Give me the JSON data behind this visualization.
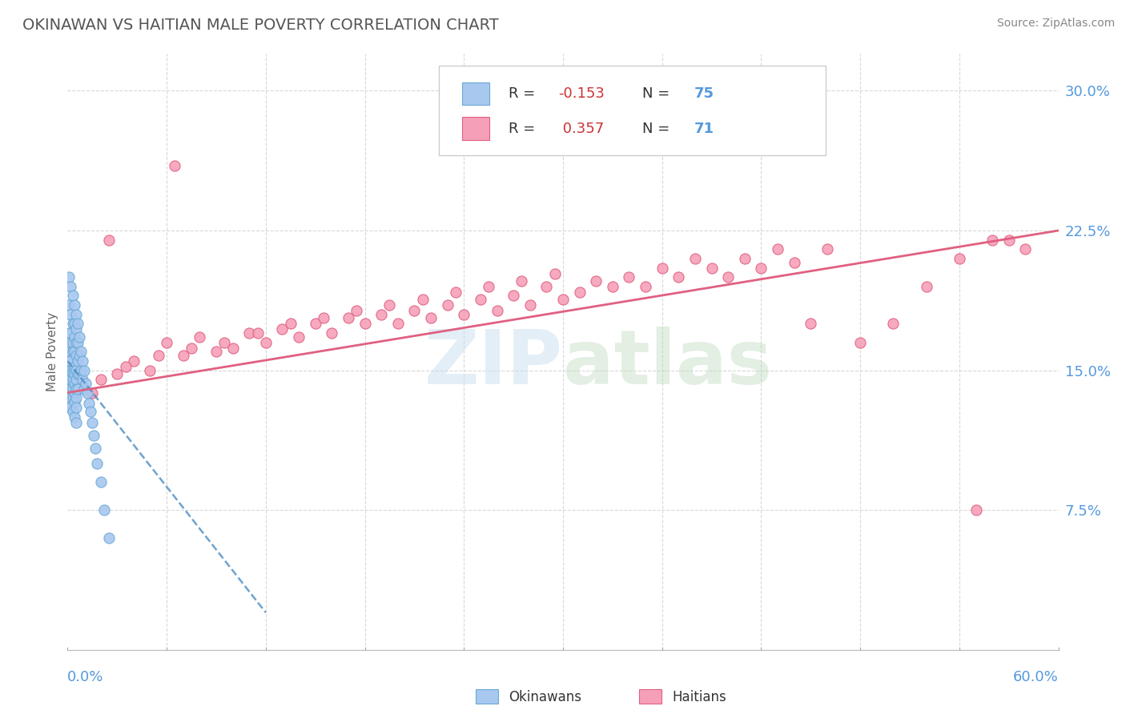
{
  "title": "OKINAWAN VS HAITIAN MALE POVERTY CORRELATION CHART",
  "source": "Source: ZipAtlas.com",
  "ylabel": "Male Poverty",
  "xmin": 0.0,
  "xmax": 0.6,
  "ymin": 0.0,
  "ymax": 0.32,
  "R_okinawan": -0.153,
  "N_okinawan": 75,
  "R_haitian": 0.357,
  "N_haitian": 71,
  "okinawan_color": "#a8c8f0",
  "haitian_color": "#f5a0b8",
  "okinawan_edge_color": "#6aaad4",
  "haitian_edge_color": "#e06080",
  "okinawan_line_color": "#4a8cc4",
  "haitian_line_color": "#e06080",
  "watermark_color": "#c8dff0",
  "background_color": "#ffffff",
  "grid_color": "#d8d8d8",
  "ytick_color": "#5599dd",
  "title_color": "#555555",
  "source_color": "#888888",
  "okinawan_scatter_x": [
    0.001,
    0.001,
    0.001,
    0.001,
    0.001,
    0.001,
    0.001,
    0.001,
    0.001,
    0.001,
    0.002,
    0.002,
    0.002,
    0.002,
    0.002,
    0.002,
    0.002,
    0.002,
    0.002,
    0.002,
    0.003,
    0.003,
    0.003,
    0.003,
    0.003,
    0.003,
    0.003,
    0.003,
    0.003,
    0.003,
    0.004,
    0.004,
    0.004,
    0.004,
    0.004,
    0.004,
    0.004,
    0.004,
    0.004,
    0.004,
    0.005,
    0.005,
    0.005,
    0.005,
    0.005,
    0.005,
    0.005,
    0.005,
    0.005,
    0.005,
    0.006,
    0.006,
    0.006,
    0.006,
    0.006,
    0.007,
    0.007,
    0.007,
    0.008,
    0.008,
    0.009,
    0.009,
    0.01,
    0.01,
    0.011,
    0.012,
    0.013,
    0.014,
    0.015,
    0.016,
    0.017,
    0.018,
    0.02,
    0.022,
    0.025
  ],
  "okinawan_scatter_y": [
    0.2,
    0.185,
    0.17,
    0.16,
    0.155,
    0.15,
    0.145,
    0.14,
    0.135,
    0.13,
    0.195,
    0.18,
    0.17,
    0.165,
    0.155,
    0.15,
    0.145,
    0.14,
    0.135,
    0.13,
    0.19,
    0.175,
    0.165,
    0.16,
    0.15,
    0.148,
    0.145,
    0.14,
    0.135,
    0.128,
    0.185,
    0.175,
    0.168,
    0.16,
    0.152,
    0.148,
    0.143,
    0.138,
    0.133,
    0.125,
    0.18,
    0.172,
    0.165,
    0.158,
    0.15,
    0.145,
    0.14,
    0.135,
    0.13,
    0.122,
    0.175,
    0.165,
    0.155,
    0.148,
    0.14,
    0.168,
    0.158,
    0.148,
    0.16,
    0.15,
    0.155,
    0.145,
    0.15,
    0.14,
    0.143,
    0.138,
    0.132,
    0.128,
    0.122,
    0.115,
    0.108,
    0.1,
    0.09,
    0.075,
    0.06
  ],
  "haitian_scatter_x": [
    0.01,
    0.02,
    0.025,
    0.03,
    0.04,
    0.05,
    0.06,
    0.065,
    0.07,
    0.08,
    0.09,
    0.1,
    0.11,
    0.12,
    0.13,
    0.14,
    0.15,
    0.16,
    0.17,
    0.18,
    0.19,
    0.2,
    0.21,
    0.22,
    0.23,
    0.24,
    0.25,
    0.26,
    0.27,
    0.28,
    0.29,
    0.3,
    0.31,
    0.32,
    0.33,
    0.34,
    0.35,
    0.36,
    0.37,
    0.38,
    0.39,
    0.4,
    0.41,
    0.42,
    0.43,
    0.44,
    0.45,
    0.46,
    0.48,
    0.5,
    0.52,
    0.54,
    0.55,
    0.56,
    0.57,
    0.58,
    0.015,
    0.035,
    0.055,
    0.075,
    0.095,
    0.115,
    0.135,
    0.155,
    0.175,
    0.195,
    0.215,
    0.235,
    0.255,
    0.275,
    0.295
  ],
  "haitian_scatter_y": [
    0.14,
    0.145,
    0.22,
    0.148,
    0.155,
    0.15,
    0.165,
    0.26,
    0.158,
    0.168,
    0.16,
    0.162,
    0.17,
    0.165,
    0.172,
    0.168,
    0.175,
    0.17,
    0.178,
    0.175,
    0.18,
    0.175,
    0.182,
    0.178,
    0.185,
    0.18,
    0.188,
    0.182,
    0.19,
    0.185,
    0.195,
    0.188,
    0.192,
    0.198,
    0.195,
    0.2,
    0.195,
    0.205,
    0.2,
    0.21,
    0.205,
    0.2,
    0.21,
    0.205,
    0.215,
    0.208,
    0.175,
    0.215,
    0.165,
    0.175,
    0.195,
    0.21,
    0.075,
    0.22,
    0.22,
    0.215,
    0.138,
    0.152,
    0.158,
    0.162,
    0.165,
    0.17,
    0.175,
    0.178,
    0.182,
    0.185,
    0.188,
    0.192,
    0.195,
    0.198,
    0.202
  ],
  "ok_line_x0": 0.0,
  "ok_line_x1": 0.12,
  "ok_line_y0": 0.155,
  "ok_line_y1": 0.02,
  "h_line_x0": 0.0,
  "h_line_x1": 0.6,
  "h_line_y0": 0.138,
  "h_line_y1": 0.225
}
